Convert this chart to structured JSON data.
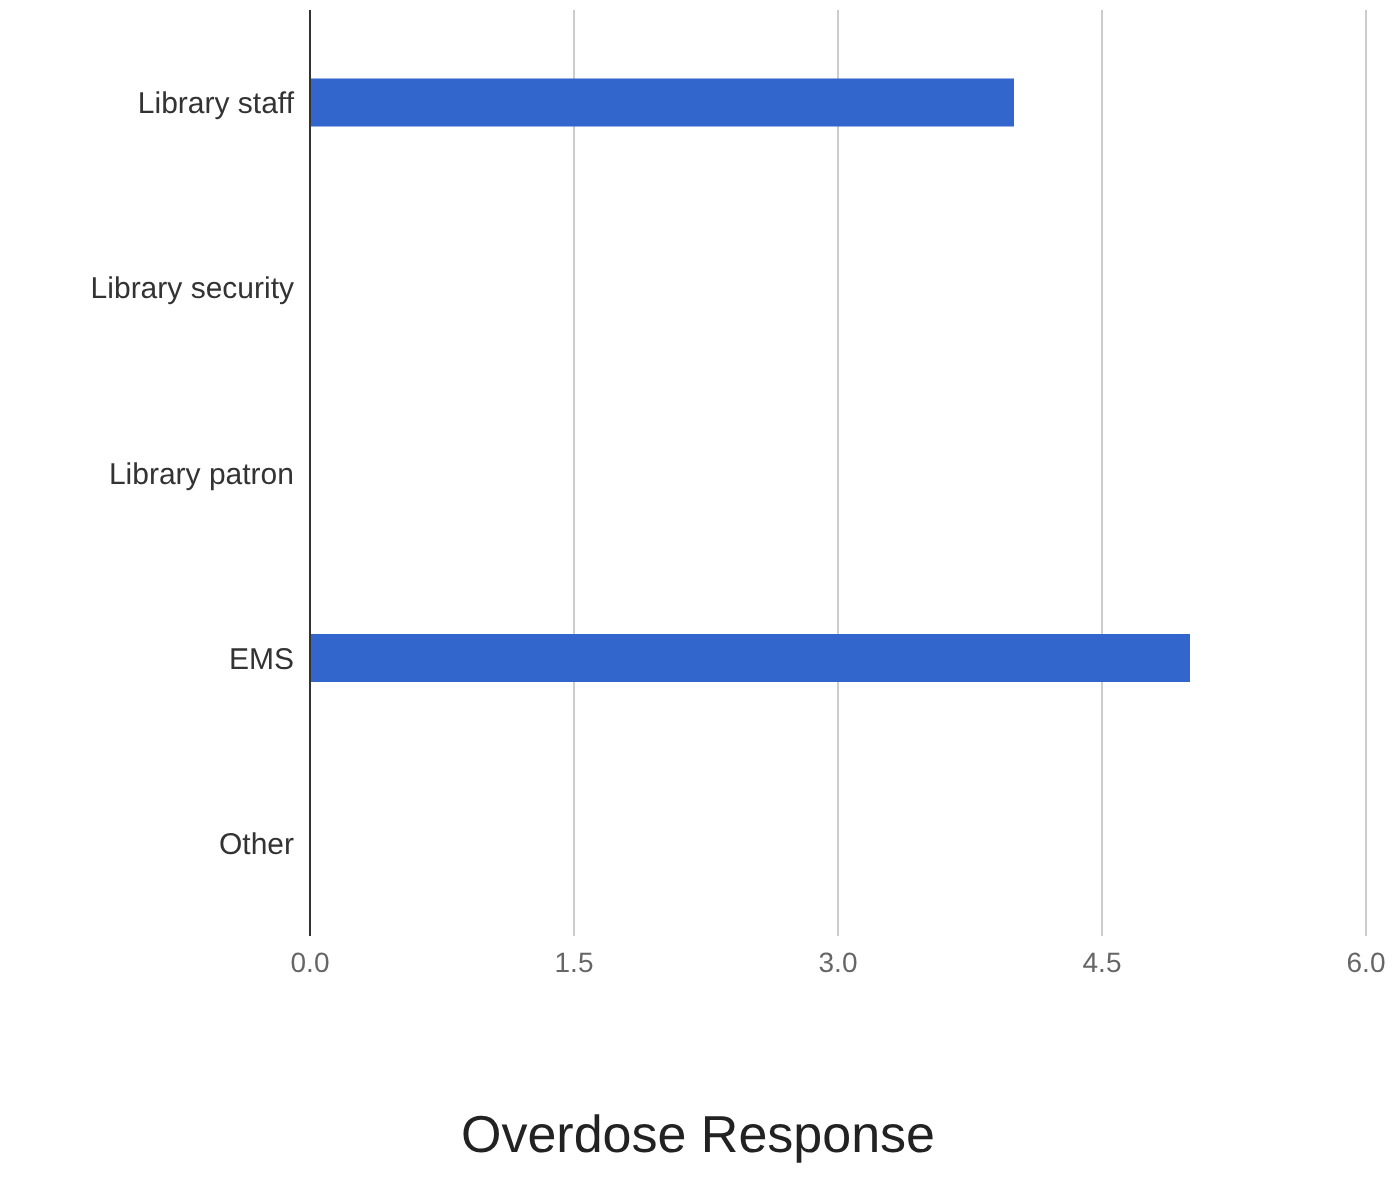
{
  "chart_data": {
    "type": "bar",
    "orientation": "horizontal",
    "title": "Overdose Response",
    "categories": [
      "Library staff",
      "Library security",
      "Library patron",
      "EMS",
      "Other"
    ],
    "values": [
      4,
      0,
      0,
      5,
      0
    ],
    "color": "#3366cc",
    "xlim": [
      0,
      6
    ],
    "xticks": [
      {
        "value": 0,
        "label": "0.0"
      },
      {
        "value": 1.5,
        "label": "1.5"
      },
      {
        "value": 3,
        "label": "3.0"
      },
      {
        "value": 4.5,
        "label": "4.5"
      },
      {
        "value": 6,
        "label": "6.0"
      }
    ],
    "grid": "x"
  }
}
